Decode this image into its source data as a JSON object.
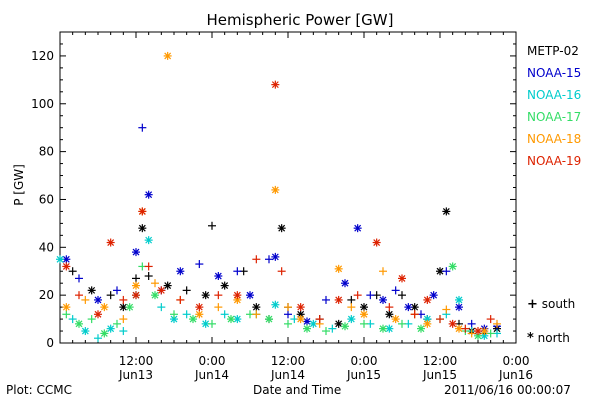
{
  "chart_data": {
    "type": "scatter",
    "title": "Hemispheric Power [GW]",
    "xlabel": "Date and Time",
    "ylabel": "P [GW]",
    "ylim": [
      0,
      130
    ],
    "yticks": [
      0,
      20,
      40,
      60,
      80,
      100,
      120
    ],
    "xlim": [
      0,
      70
    ],
    "xticks": [
      {
        "x": 12,
        "time": "12:00",
        "date": "Jun13"
      },
      {
        "x": 24,
        "time": "0:00",
        "date": "Jun14"
      },
      {
        "x": 36,
        "time": "12:00",
        "date": "Jun14"
      },
      {
        "x": 48,
        "time": "0:00",
        "date": "Jun15"
      },
      {
        "x": 60,
        "time": "12:00",
        "date": "Jun15"
      },
      {
        "x": 72,
        "time": "0:00",
        "date": "Jun16"
      }
    ],
    "hemispheres": [
      {
        "marker": "+",
        "label": "south"
      },
      {
        "marker": "*",
        "label": "north"
      }
    ],
    "series": [
      {
        "name": "METP-02",
        "color": "#000000",
        "points": [
          [
            2,
            30,
            "s"
          ],
          [
            5,
            22,
            "n"
          ],
          [
            8,
            20,
            "s"
          ],
          [
            10,
            15,
            "n"
          ],
          [
            12,
            27,
            "s"
          ],
          [
            13,
            48,
            "n"
          ],
          [
            14,
            28,
            "s"
          ],
          [
            17,
            24,
            "n"
          ],
          [
            20,
            22,
            "s"
          ],
          [
            23,
            20,
            "n"
          ],
          [
            24,
            49,
            "s"
          ],
          [
            26,
            24,
            "n"
          ],
          [
            29,
            30,
            "s"
          ],
          [
            31,
            15,
            "n"
          ],
          [
            33,
            10,
            "s"
          ],
          [
            35,
            48,
            "n"
          ],
          [
            36,
            15,
            "s"
          ],
          [
            38,
            12,
            "n"
          ],
          [
            41,
            10,
            "s"
          ],
          [
            44,
            8,
            "n"
          ],
          [
            46,
            18,
            "s"
          ],
          [
            48,
            15,
            "n"
          ],
          [
            50,
            20,
            "s"
          ],
          [
            52,
            12,
            "n"
          ],
          [
            54,
            20,
            "s"
          ],
          [
            56,
            15,
            "n"
          ],
          [
            58,
            10,
            "s"
          ],
          [
            60,
            30,
            "n"
          ],
          [
            61,
            55,
            "n"
          ],
          [
            63,
            8,
            "s"
          ],
          [
            65,
            5,
            "n"
          ],
          [
            67,
            4,
            "s"
          ],
          [
            69,
            6,
            "n"
          ]
        ]
      },
      {
        "name": "NOAA-15",
        "color": "#0000cc",
        "points": [
          [
            1,
            35,
            "n"
          ],
          [
            3,
            27,
            "s"
          ],
          [
            6,
            18,
            "n"
          ],
          [
            9,
            22,
            "s"
          ],
          [
            12,
            38,
            "n"
          ],
          [
            13,
            90,
            "s"
          ],
          [
            14,
            62,
            "n"
          ],
          [
            16,
            22,
            "s"
          ],
          [
            19,
            30,
            "n"
          ],
          [
            22,
            33,
            "s"
          ],
          [
            25,
            28,
            "n"
          ],
          [
            28,
            30,
            "s"
          ],
          [
            30,
            20,
            "n"
          ],
          [
            33,
            35,
            "s"
          ],
          [
            34,
            36,
            "n"
          ],
          [
            36,
            12,
            "s"
          ],
          [
            39,
            9,
            "n"
          ],
          [
            42,
            18,
            "s"
          ],
          [
            45,
            25,
            "n"
          ],
          [
            47,
            48,
            "n"
          ],
          [
            49,
            20,
            "s"
          ],
          [
            51,
            18,
            "n"
          ],
          [
            53,
            22,
            "s"
          ],
          [
            55,
            15,
            "n"
          ],
          [
            57,
            12,
            "s"
          ],
          [
            59,
            20,
            "n"
          ],
          [
            61,
            30,
            "s"
          ],
          [
            63,
            15,
            "n"
          ],
          [
            65,
            8,
            "s"
          ],
          [
            67,
            6,
            "n"
          ],
          [
            69,
            7,
            "s"
          ]
        ]
      },
      {
        "name": "NOAA-16",
        "color": "#00cccc",
        "points": [
          [
            0,
            35,
            "n"
          ],
          [
            2,
            10,
            "s"
          ],
          [
            4,
            5,
            "n"
          ],
          [
            6,
            2,
            "s"
          ],
          [
            8,
            6,
            "n"
          ],
          [
            10,
            5,
            "s"
          ],
          [
            12,
            20,
            "n"
          ],
          [
            14,
            43,
            "n"
          ],
          [
            16,
            15,
            "s"
          ],
          [
            18,
            10,
            "n"
          ],
          [
            20,
            12,
            "s"
          ],
          [
            23,
            8,
            "n"
          ],
          [
            26,
            12,
            "s"
          ],
          [
            28,
            10,
            "n"
          ],
          [
            31,
            12,
            "s"
          ],
          [
            34,
            16,
            "n"
          ],
          [
            37,
            10,
            "s"
          ],
          [
            40,
            8,
            "n"
          ],
          [
            43,
            6,
            "s"
          ],
          [
            46,
            10,
            "n"
          ],
          [
            49,
            8,
            "s"
          ],
          [
            52,
            6,
            "n"
          ],
          [
            55,
            8,
            "s"
          ],
          [
            58,
            10,
            "n"
          ],
          [
            61,
            12,
            "s"
          ],
          [
            63,
            18,
            "n"
          ],
          [
            65,
            5,
            "s"
          ],
          [
            67,
            3,
            "n"
          ],
          [
            69,
            4,
            "s"
          ]
        ]
      },
      {
        "name": "NOAA-17",
        "color": "#33dd66",
        "points": [
          [
            1,
            12,
            "s"
          ],
          [
            3,
            8,
            "n"
          ],
          [
            5,
            10,
            "s"
          ],
          [
            7,
            4,
            "n"
          ],
          [
            9,
            8,
            "s"
          ],
          [
            11,
            15,
            "n"
          ],
          [
            13,
            32,
            "s"
          ],
          [
            15,
            20,
            "n"
          ],
          [
            18,
            12,
            "s"
          ],
          [
            21,
            10,
            "n"
          ],
          [
            24,
            8,
            "s"
          ],
          [
            27,
            10,
            "n"
          ],
          [
            30,
            12,
            "s"
          ],
          [
            33,
            10,
            "n"
          ],
          [
            36,
            8,
            "s"
          ],
          [
            39,
            6,
            "n"
          ],
          [
            42,
            5,
            "s"
          ],
          [
            45,
            7,
            "n"
          ],
          [
            48,
            8,
            "s"
          ],
          [
            51,
            6,
            "n"
          ],
          [
            54,
            8,
            "s"
          ],
          [
            57,
            6,
            "n"
          ],
          [
            60,
            10,
            "s"
          ],
          [
            62,
            32,
            "n"
          ],
          [
            64,
            5,
            "s"
          ],
          [
            66,
            3,
            "n"
          ],
          [
            68,
            4,
            "s"
          ]
        ]
      },
      {
        "name": "NOAA-18",
        "color": "#ff9900",
        "points": [
          [
            1,
            15,
            "n"
          ],
          [
            4,
            18,
            "s"
          ],
          [
            7,
            15,
            "n"
          ],
          [
            10,
            10,
            "s"
          ],
          [
            12,
            24,
            "n"
          ],
          [
            13,
            55,
            "n"
          ],
          [
            15,
            25,
            "s"
          ],
          [
            17,
            120,
            "n"
          ],
          [
            19,
            18,
            "s"
          ],
          [
            22,
            12,
            "n"
          ],
          [
            25,
            15,
            "s"
          ],
          [
            28,
            18,
            "n"
          ],
          [
            31,
            12,
            "s"
          ],
          [
            34,
            64,
            "n"
          ],
          [
            36,
            15,
            "s"
          ],
          [
            38,
            10,
            "n"
          ],
          [
            41,
            8,
            "s"
          ],
          [
            44,
            31,
            "n"
          ],
          [
            46,
            15,
            "s"
          ],
          [
            48,
            12,
            "n"
          ],
          [
            51,
            30,
            "s"
          ],
          [
            53,
            10,
            "n"
          ],
          [
            56,
            12,
            "s"
          ],
          [
            58,
            8,
            "n"
          ],
          [
            61,
            14,
            "s"
          ],
          [
            63,
            6,
            "n"
          ],
          [
            65,
            4,
            "s"
          ],
          [
            67,
            5,
            "n"
          ],
          [
            69,
            8,
            "s"
          ]
        ]
      },
      {
        "name": "NOAA-19",
        "color": "#dd2200",
        "points": [
          [
            1,
            32,
            "n"
          ],
          [
            3,
            20,
            "s"
          ],
          [
            6,
            12,
            "n"
          ],
          [
            8,
            42,
            "n"
          ],
          [
            10,
            18,
            "s"
          ],
          [
            12,
            20,
            "n"
          ],
          [
            13,
            55,
            "n"
          ],
          [
            14,
            32,
            "s"
          ],
          [
            16,
            22,
            "n"
          ],
          [
            19,
            18,
            "s"
          ],
          [
            22,
            15,
            "n"
          ],
          [
            25,
            20,
            "s"
          ],
          [
            28,
            20,
            "n"
          ],
          [
            31,
            35,
            "s"
          ],
          [
            34,
            108,
            "n"
          ],
          [
            35,
            30,
            "s"
          ],
          [
            38,
            15,
            "n"
          ],
          [
            41,
            10,
            "s"
          ],
          [
            44,
            18,
            "n"
          ],
          [
            47,
            20,
            "s"
          ],
          [
            50,
            42,
            "n"
          ],
          [
            52,
            15,
            "s"
          ],
          [
            54,
            27,
            "n"
          ],
          [
            56,
            12,
            "s"
          ],
          [
            58,
            18,
            "n"
          ],
          [
            60,
            10,
            "s"
          ],
          [
            62,
            8,
            "n"
          ],
          [
            64,
            6,
            "s"
          ],
          [
            66,
            5,
            "n"
          ],
          [
            68,
            10,
            "s"
          ]
        ]
      }
    ]
  },
  "footer": {
    "left": "Plot: CCMC",
    "right": "2011/06/16 00:00:07"
  }
}
